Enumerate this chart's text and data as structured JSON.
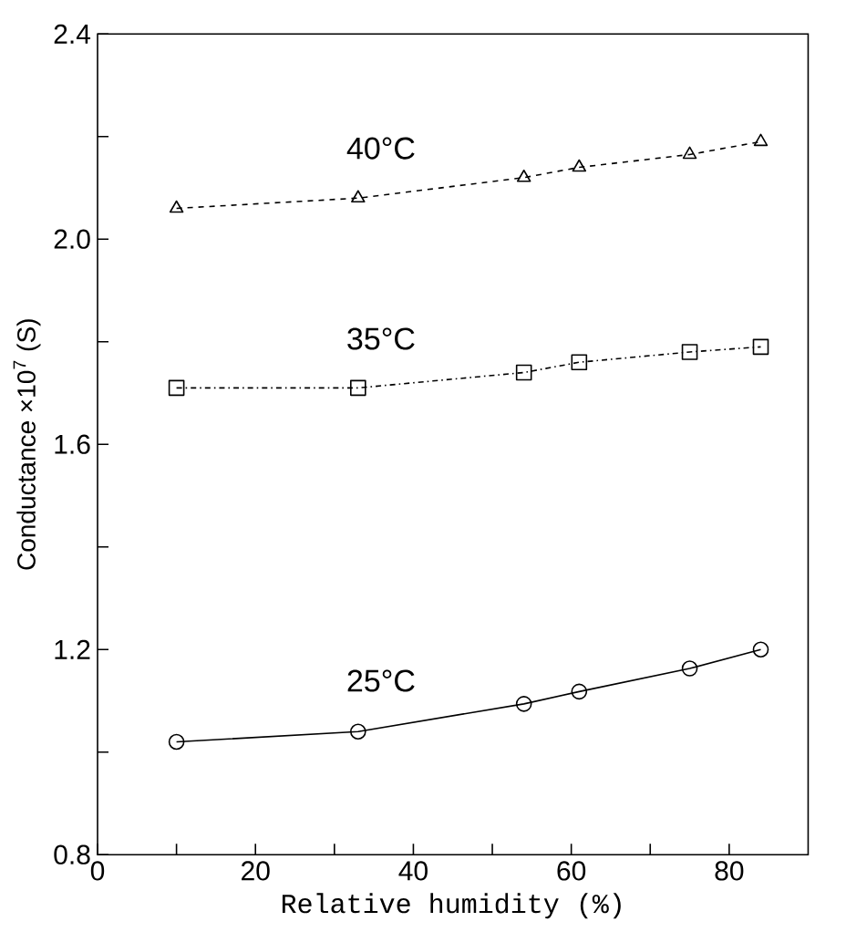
{
  "chart_data": {
    "type": "line",
    "xlabel": "Relative humidity (%)",
    "ylabel": "Conductance ×10$^{7}$ (S)",
    "x": [
      10,
      33,
      54,
      61,
      75,
      84
    ],
    "series": [
      {
        "name": "40°C",
        "color": "#000000",
        "marker": "triangle",
        "line_style": "dashed",
        "values": [
          2.06,
          2.08,
          2.12,
          2.14,
          2.165,
          2.19
        ]
      },
      {
        "name": "35°C",
        "color": "#000000",
        "marker": "square",
        "line_style": "dashdot",
        "values": [
          1.71,
          1.71,
          1.74,
          1.76,
          1.78,
          1.79
        ]
      },
      {
        "name": "25°C",
        "color": "#000000",
        "marker": "circle",
        "line_style": "solid",
        "values": [
          1.02,
          1.04,
          1.094,
          1.118,
          1.163,
          1.2
        ]
      }
    ],
    "xlim": [
      0,
      90
    ],
    "ylim": [
      0.8,
      2.4
    ],
    "xticks": [
      0,
      {
        "value": 10,
        "label": null
      },
      20,
      {
        "value": 30,
        "label": null
      },
      40,
      {
        "value": 50,
        "label": null
      },
      60,
      {
        "value": 70,
        "label": null
      },
      80
    ],
    "yticks": [
      0.8,
      {
        "value": 1.0,
        "label": null
      },
      1.2,
      {
        "value": 1.4,
        "label": null
      },
      1.6,
      {
        "value": 1.8,
        "label": null
      },
      {
        "value": 2.0,
        "label": "2.0"
      },
      {
        "value": 2.2,
        "label": null
      },
      2.4
    ],
    "grid": false,
    "legend": false
  }
}
